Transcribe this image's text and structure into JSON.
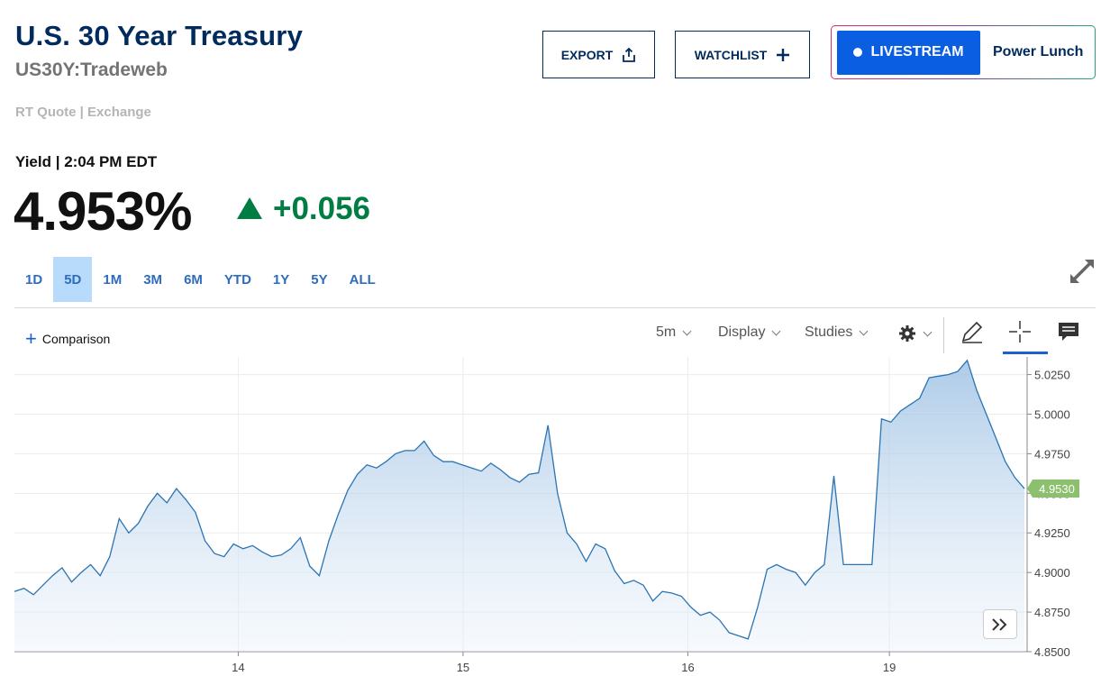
{
  "header": {
    "title": "U.S. 30 Year Treasury",
    "symbol": "US30Y:Tradeweb",
    "quote_type": "RT Quote | Exchange"
  },
  "actions": {
    "export_label": "EXPORT",
    "watchlist_label": "WATCHLIST",
    "livestream_label": "LIVESTREAM",
    "livestream_show": "Power Lunch"
  },
  "quote": {
    "label": "Yield | 2:04 PM EDT",
    "price": "4.953%",
    "change": "+0.056",
    "change_color": "#007d43"
  },
  "ranges": [
    {
      "label": "1D",
      "active": false
    },
    {
      "label": "5D",
      "active": true
    },
    {
      "label": "1M",
      "active": false
    },
    {
      "label": "3M",
      "active": false
    },
    {
      "label": "6M",
      "active": false
    },
    {
      "label": "YTD",
      "active": false
    },
    {
      "label": "1Y",
      "active": false
    },
    {
      "label": "5Y",
      "active": false
    },
    {
      "label": "ALL",
      "active": false
    }
  ],
  "toolbar": {
    "comparison_label": "Comparison",
    "interval_label": "5m",
    "display_label": "Display",
    "studies_label": "Studies"
  },
  "icons": {
    "export": "share-icon",
    "watchlist": "plus-icon",
    "expand": "expand-icon",
    "settings": "gear-icon",
    "draw": "pencil-icon",
    "crosshair": "crosshair-icon",
    "comment": "comment-icon",
    "scroll": "double-chevron-right-icon"
  },
  "chart_data": {
    "type": "area",
    "x_tick_labels": [
      "14",
      "15",
      "16",
      "19"
    ],
    "y_tick_labels": [
      "4.8500",
      "4.8750",
      "4.9000",
      "4.9250",
      "4.9500",
      "4.9750",
      "5.0000",
      "5.0250"
    ],
    "ylim": [
      4.85,
      5.035
    ],
    "grid": true,
    "line_color": "#2a74b3",
    "last_value_label": "4.9530",
    "last_value_color": "#8cbf6e",
    "series": [
      {
        "values": [
          4.888,
          4.89,
          4.886,
          4.892,
          4.898,
          4.903,
          4.894,
          4.9,
          4.905,
          4.898,
          4.91,
          4.934,
          4.925,
          4.931,
          4.942,
          4.95,
          4.944,
          4.953,
          4.946,
          4.938,
          4.92,
          4.912,
          4.91,
          4.918,
          4.915,
          4.917,
          4.913,
          4.91,
          4.911,
          4.915,
          4.922,
          4.904,
          4.898,
          4.92,
          4.937,
          4.952,
          4.962,
          4.968,
          4.966,
          4.97,
          4.975,
          4.977,
          4.977,
          4.983,
          4.974,
          4.97,
          4.97,
          4.968,
          4.966,
          4.964,
          4.969,
          4.965,
          4.96,
          4.957,
          4.962,
          4.963,
          4.993,
          4.95,
          4.925,
          4.918,
          4.907,
          4.918,
          4.915,
          4.901,
          4.893,
          4.895,
          4.892,
          4.882,
          4.888,
          4.887,
          4.885,
          4.878,
          4.873,
          4.875,
          4.87,
          4.862,
          4.86,
          4.858,
          4.878,
          4.902,
          4.905,
          4.902,
          4.9,
          4.892,
          4.9,
          4.905,
          4.961,
          4.905,
          4.905,
          4.905,
          4.905,
          4.997,
          4.995,
          5.002,
          5.006,
          5.01,
          5.023,
          5.024,
          5.025,
          5.027,
          5.034,
          5.015,
          5.0,
          4.985,
          4.97,
          4.96,
          4.953
        ]
      }
    ]
  }
}
